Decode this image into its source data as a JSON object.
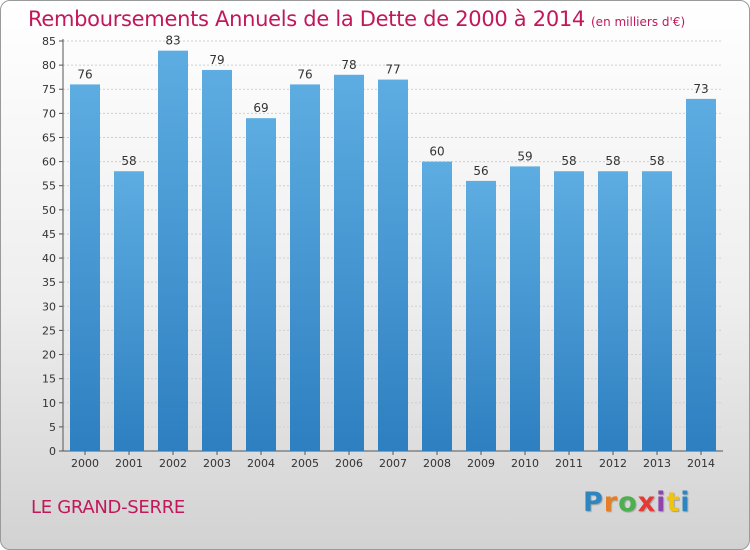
{
  "title": "Remboursements Annuels de la Dette de 2000 à 2014",
  "subtitle": "(en milliers d'€)",
  "town": "LE GRAND-SERRE",
  "logo": {
    "text": "Proxiti",
    "colors": [
      "#2e86c1",
      "#e67e22",
      "#4caf50",
      "#e53935",
      "#8e44ad",
      "#f1c40f",
      "#2e86c1"
    ]
  },
  "colors": {
    "bar_light": "#5dade2",
    "bar_dark": "#2e7fc0",
    "title": "#c2185b"
  },
  "chart_data": {
    "type": "bar",
    "categories": [
      "2000",
      "2001",
      "2002",
      "2003",
      "2004",
      "2005",
      "2006",
      "2007",
      "2008",
      "2009",
      "2010",
      "2011",
      "2012",
      "2013",
      "2014"
    ],
    "values": [
      76,
      58,
      83,
      79,
      69,
      76,
      78,
      77,
      60,
      56,
      59,
      58,
      58,
      58,
      73
    ],
    "title": "Remboursements Annuels de la Dette de 2000 à 2014",
    "ylim": [
      0,
      85
    ],
    "yticks": [
      0,
      5,
      10,
      15,
      20,
      25,
      30,
      35,
      40,
      45,
      50,
      55,
      60,
      65,
      70,
      75,
      80,
      85
    ],
    "grid": true
  }
}
